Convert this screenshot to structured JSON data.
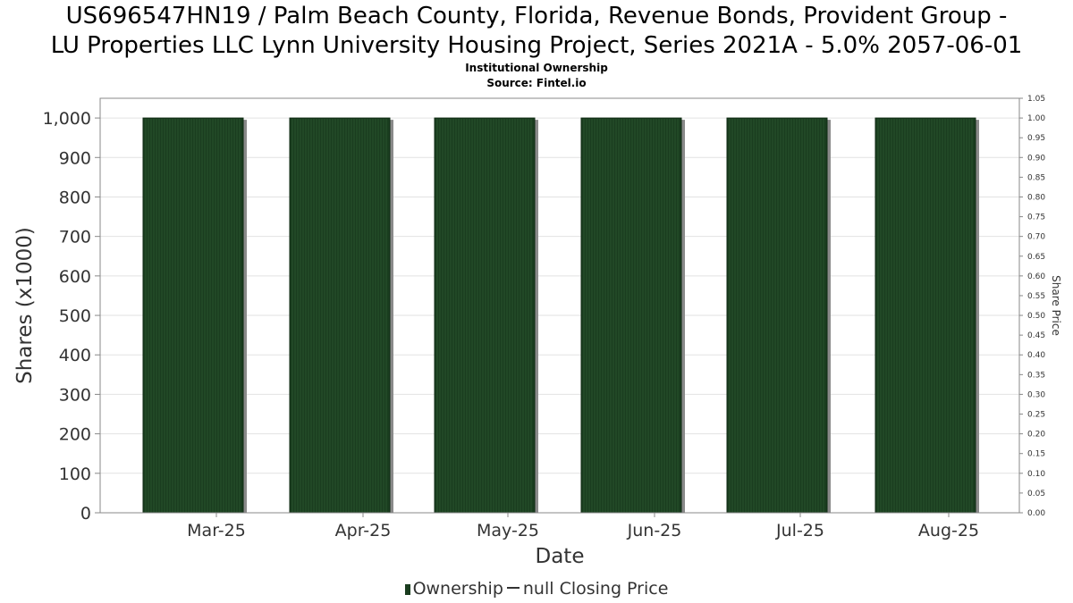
{
  "title_line1": "US696547HN19 / Palm Beach County, Florida, Revenue Bonds, Provident Group -",
  "title_line2": "LU Properties LLC Lynn University Housing Project, Series 2021A - 5.0% 2057-06-01",
  "subtitle": "Institutional Ownership",
  "source": "Source: Fintel.io",
  "legend": {
    "ownership": "Ownership",
    "closing_price": "null Closing Price"
  },
  "colors": {
    "bar_fill": "#1a3d1f",
    "bar_stripe": "#2c5a31",
    "bar_shadow": "#8a8a8a",
    "grid": "#e2e2e2",
    "axis": "#888888"
  },
  "chart_data": {
    "type": "bar",
    "title": "US696547HN19 / Palm Beach County, Florida, Revenue Bonds, Provident Group - LU Properties LLC Lynn University Housing Project, Series 2021A - 5.0% 2057-06-01",
    "subtitle": "Institutional Ownership",
    "categories": [
      "Mar-25",
      "Apr-25",
      "May-25",
      "Jun-25",
      "Jul-25",
      "Aug-25"
    ],
    "series": [
      {
        "name": "Ownership",
        "values": [
          1000,
          1000,
          1000,
          1000,
          1000,
          1000
        ]
      }
    ],
    "xlabel": "Date",
    "ylabel": "Shares (x1000)",
    "ylim": [
      0,
      1050
    ],
    "yticks": [
      "0",
      "100",
      "200",
      "300",
      "400",
      "500",
      "600",
      "700",
      "800",
      "900",
      "1,000"
    ],
    "y2label": "Share Price",
    "y2lim": [
      0,
      1.05
    ],
    "y2ticks": [
      "0.00",
      "0.05",
      "0.10",
      "0.15",
      "0.20",
      "0.25",
      "0.30",
      "0.35",
      "0.40",
      "0.45",
      "0.50",
      "0.55",
      "0.60",
      "0.65",
      "0.70",
      "0.75",
      "0.80",
      "0.85",
      "0.90",
      "0.95",
      "1.00",
      "1.05"
    ],
    "grid": true,
    "legend_position": "bottom"
  }
}
